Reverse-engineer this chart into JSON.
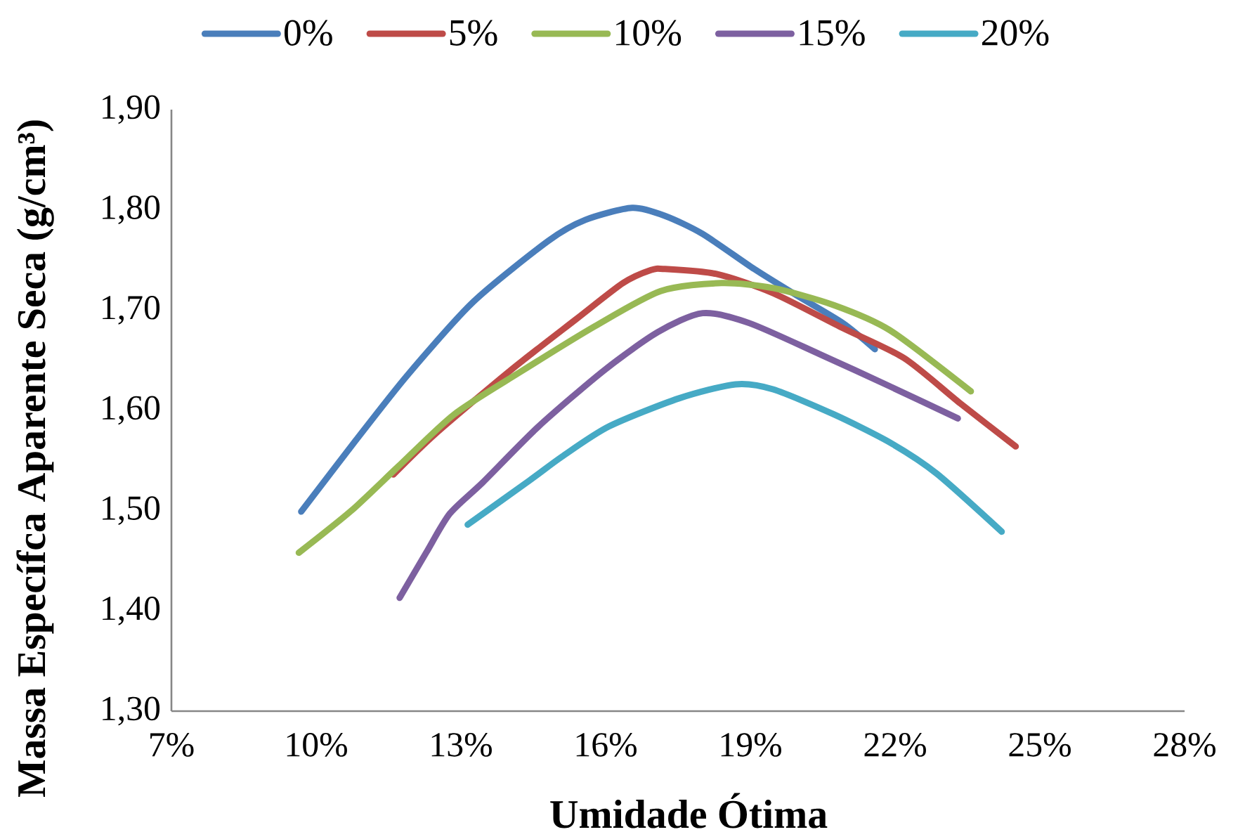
{
  "chart_data": {
    "type": "line",
    "xlabel": "Umidade Ótima",
    "ylabel": "Massa Específca Aparente Seca (g/cm³)",
    "xlim": [
      7,
      28
    ],
    "ylim": [
      1.3,
      1.9
    ],
    "xticks": [
      {
        "value": 7,
        "label": "7%"
      },
      {
        "value": 10,
        "label": "10%"
      },
      {
        "value": 13,
        "label": "13%"
      },
      {
        "value": 16,
        "label": "16%"
      },
      {
        "value": 19,
        "label": "19%"
      },
      {
        "value": 22,
        "label": "22%"
      },
      {
        "value": 25,
        "label": "25%"
      },
      {
        "value": 28,
        "label": "28%"
      }
    ],
    "yticks": [
      {
        "value": 1.3,
        "label": "1,30"
      },
      {
        "value": 1.4,
        "label": "1,40"
      },
      {
        "value": 1.5,
        "label": "1,50"
      },
      {
        "value": 1.6,
        "label": "1,60"
      },
      {
        "value": 1.7,
        "label": "1,70"
      },
      {
        "value": 1.8,
        "label": "1,80"
      },
      {
        "value": 1.9,
        "label": "1,90"
      }
    ],
    "legend": "top",
    "marker": "none",
    "line_style": "solid",
    "series": [
      {
        "name": "0%",
        "color": "#4a7ebb",
        "x": [
          9.69,
          10.82,
          11.89,
          13.25,
          14.81,
          15.58,
          16.55,
          17.23,
          18.01,
          19.08,
          19.95,
          20.92,
          21.58
        ],
        "values": [
          1.499,
          1.57,
          1.635,
          1.708,
          1.769,
          1.79,
          1.802,
          1.794,
          1.776,
          1.741,
          1.715,
          1.687,
          1.661
        ]
      },
      {
        "name": "5%",
        "color": "#be4b48",
        "x": [
          11.6,
          12.48,
          14.03,
          15.39,
          16.36,
          16.94,
          17.23,
          18.3,
          19.47,
          20.92,
          22.19,
          23.35,
          24.5
        ],
        "values": [
          1.536,
          1.577,
          1.64,
          1.691,
          1.727,
          1.74,
          1.741,
          1.736,
          1.717,
          1.682,
          1.652,
          1.607,
          1.564
        ]
      },
      {
        "name": "10%",
        "color": "#98b954",
        "x": [
          9.64,
          10.73,
          11.7,
          12.86,
          14.22,
          15.78,
          17.14,
          18.4,
          19.47,
          20.73,
          21.89,
          23.57
        ],
        "values": [
          1.458,
          1.5,
          1.544,
          1.596,
          1.638,
          1.684,
          1.719,
          1.727,
          1.722,
          1.705,
          1.68,
          1.619
        ]
      },
      {
        "name": "15%",
        "color": "#7d60a0",
        "x": [
          11.73,
          12.28,
          12.77,
          13.45,
          14.61,
          15.97,
          17.08,
          18.01,
          18.98,
          20.44,
          21.89,
          23.3
        ],
        "values": [
          1.413,
          1.458,
          1.497,
          1.528,
          1.584,
          1.64,
          1.678,
          1.697,
          1.687,
          1.656,
          1.624,
          1.592
        ]
      },
      {
        "name": "20%",
        "color": "#46aac5",
        "x": [
          13.14,
          14.42,
          15.1,
          16.07,
          17.52,
          18.69,
          19.47,
          20.73,
          21.89,
          22.86,
          24.21
        ],
        "values": [
          1.486,
          1.53,
          1.554,
          1.584,
          1.612,
          1.626,
          1.621,
          1.596,
          1.568,
          1.537,
          1.479
        ]
      }
    ]
  }
}
